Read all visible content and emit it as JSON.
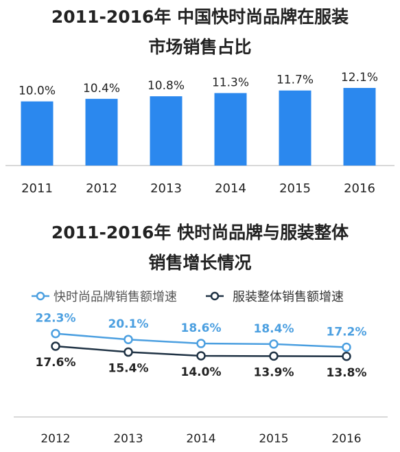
{
  "titles": {
    "chart1_line1": "2011-2016年 中国快时尚品牌在服装",
    "chart1_line2": "市场销售占比",
    "chart2_line1": "2011-2016年 快时尚品牌与服装整体",
    "chart2_line2": "销售增长情况"
  },
  "colors": {
    "bar": "#2b88ee",
    "line_fast_fashion": "#4b9fe0",
    "line_apparel": "#1f3244",
    "axis": "#cccccc"
  },
  "chart_data": [
    {
      "type": "bar",
      "title": "2011-2016年 中国快时尚品牌在服装市场销售占比",
      "categories": [
        "2011",
        "2012",
        "2013",
        "2014",
        "2015",
        "2016"
      ],
      "values": [
        10.0,
        10.4,
        10.8,
        11.3,
        11.7,
        12.1
      ],
      "value_labels": [
        "10.0%",
        "10.4%",
        "10.8%",
        "11.3%",
        "11.7%",
        "12.1%"
      ],
      "unit": "%",
      "ylim": [
        0,
        12.1
      ],
      "grid": false
    },
    {
      "type": "line",
      "title": "2011-2016年 快时尚品牌与服装整体销售增长情况",
      "categories": [
        "2012",
        "2013",
        "2014",
        "2015",
        "2016"
      ],
      "series": [
        {
          "name": "快时尚品牌销售额增速",
          "values": [
            22.3,
            20.1,
            18.6,
            18.4,
            17.2
          ],
          "value_labels": [
            "22.3%",
            "20.1%",
            "18.6%",
            "18.4%",
            "17.2%"
          ]
        },
        {
          "name": "服装整体销售额增速",
          "values": [
            17.6,
            15.4,
            14.0,
            13.9,
            13.8
          ],
          "value_labels": [
            "17.6%",
            "15.4%",
            "14.0%",
            "13.9%",
            "13.8%"
          ]
        }
      ],
      "unit": "%",
      "legend": "top",
      "ylim": [
        0,
        25
      ],
      "grid": false
    }
  ]
}
